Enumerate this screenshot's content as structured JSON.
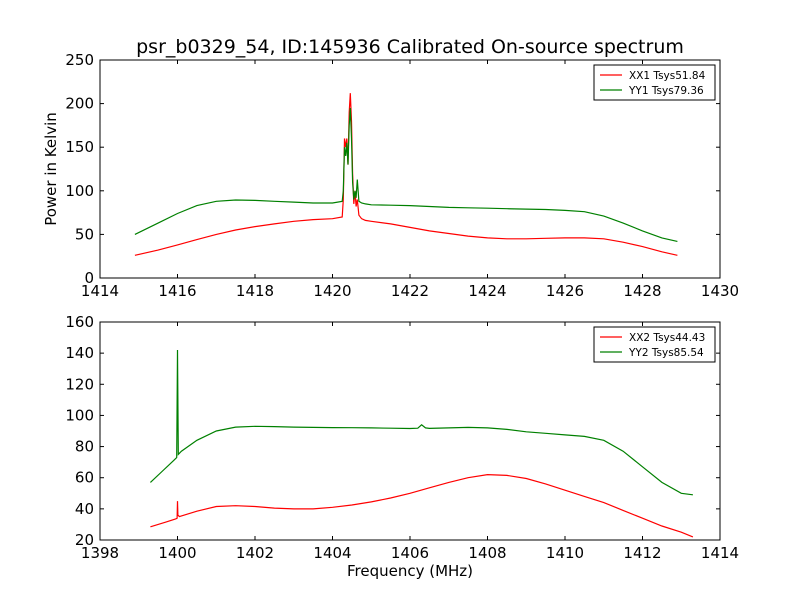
{
  "title": "psr_b0329_54, ID:145936 Calibrated On-source spectrum",
  "chart_data": [
    {
      "type": "line",
      "xlabel": "",
      "ylabel": "Power in Kelvin",
      "xlim": [
        1414,
        1430
      ],
      "ylim": [
        0,
        250
      ],
      "xticks": [
        1414,
        1416,
        1418,
        1420,
        1422,
        1424,
        1426,
        1428,
        1430
      ],
      "yticks": [
        0,
        50,
        100,
        150,
        200,
        250
      ],
      "legend_position": "top-right",
      "series": [
        {
          "name": "XX1 Tsys51.84",
          "color": "#ff0000",
          "x": [
            1414.9,
            1415.5,
            1416.0,
            1416.5,
            1417.0,
            1417.5,
            1418.0,
            1418.5,
            1419.0,
            1419.5,
            1420.0,
            1420.25,
            1420.28,
            1420.31,
            1420.34,
            1420.37,
            1420.4,
            1420.43,
            1420.46,
            1420.49,
            1420.52,
            1420.55,
            1420.58,
            1420.61,
            1420.64,
            1420.68,
            1420.75,
            1420.85,
            1421.0,
            1421.5,
            1422.0,
            1422.5,
            1423.0,
            1423.5,
            1424.0,
            1424.5,
            1425.0,
            1425.5,
            1426.0,
            1426.5,
            1427.0,
            1427.5,
            1428.0,
            1428.5,
            1428.9
          ],
          "y": [
            26,
            32,
            38,
            44,
            50,
            55,
            59,
            62,
            65,
            67,
            68,
            70,
            90,
            160,
            150,
            160,
            130,
            190,
            212,
            180,
            120,
            85,
            100,
            82,
            90,
            72,
            68,
            66,
            65,
            62,
            58,
            54,
            51,
            48,
            46,
            45,
            45,
            45.5,
            46,
            46,
            45,
            41,
            36,
            30,
            26
          ]
        },
        {
          "name": "YY1 Tsys79.36",
          "color": "#008000",
          "x": [
            1414.9,
            1415.5,
            1416.0,
            1416.5,
            1417.0,
            1417.5,
            1418.0,
            1418.5,
            1419.0,
            1419.5,
            1420.0,
            1420.25,
            1420.28,
            1420.31,
            1420.34,
            1420.37,
            1420.4,
            1420.43,
            1420.46,
            1420.49,
            1420.52,
            1420.55,
            1420.58,
            1420.61,
            1420.64,
            1420.68,
            1420.75,
            1420.85,
            1421.0,
            1421.5,
            1422.0,
            1422.5,
            1423.0,
            1423.5,
            1424.0,
            1424.5,
            1425.0,
            1425.5,
            1426.0,
            1426.5,
            1427.0,
            1427.5,
            1428.0,
            1428.5,
            1428.9
          ],
          "y": [
            50,
            63,
            74,
            83,
            88,
            89.5,
            89,
            88,
            87,
            86,
            86,
            88,
            100,
            150,
            140,
            155,
            130,
            175,
            195,
            160,
            110,
            90,
            100,
            92,
            113,
            88,
            86,
            85,
            84,
            83.5,
            83,
            82,
            81,
            80.5,
            80,
            79.5,
            79,
            78.5,
            77.5,
            76,
            71,
            63,
            54,
            46,
            42
          ]
        }
      ]
    },
    {
      "type": "line",
      "xlabel": "Frequency (MHz)",
      "ylabel": "",
      "xlim": [
        1398,
        1414
      ],
      "ylim": [
        20,
        160
      ],
      "xticks": [
        1398,
        1400,
        1402,
        1404,
        1406,
        1408,
        1410,
        1412,
        1414
      ],
      "yticks": [
        20,
        40,
        60,
        80,
        100,
        120,
        140,
        160
      ],
      "legend_position": "top-right",
      "series": [
        {
          "name": "XX2 Tsys44.43",
          "color": "#ff0000",
          "x": [
            1399.3,
            1399.7,
            1399.95,
            1399.99,
            1400.0,
            1400.01,
            1400.05,
            1400.5,
            1401.0,
            1401.5,
            1402.0,
            1402.5,
            1403.0,
            1403.5,
            1404.0,
            1404.5,
            1405.0,
            1405.5,
            1406.0,
            1406.5,
            1407.0,
            1407.5,
            1408.0,
            1408.5,
            1409.0,
            1409.5,
            1410.0,
            1410.5,
            1411.0,
            1411.5,
            1412.0,
            1412.5,
            1413.0,
            1413.3
          ],
          "y": [
            28.5,
            31.5,
            33.5,
            34,
            45,
            36,
            35,
            38.5,
            41.5,
            42,
            41.5,
            40.5,
            40,
            40,
            41,
            42.5,
            44.5,
            47,
            50,
            53.5,
            57,
            60,
            62,
            61.5,
            59.5,
            56,
            52,
            48,
            44,
            39,
            34,
            29,
            25,
            22
          ]
        },
        {
          "name": "YY2 Tsys85.54",
          "color": "#008000",
          "x": [
            1399.3,
            1399.6,
            1399.9,
            1399.98,
            1400.0,
            1400.02,
            1400.1,
            1400.5,
            1401.0,
            1401.5,
            1402.0,
            1402.5,
            1403.0,
            1403.5,
            1404.0,
            1404.5,
            1405.0,
            1405.5,
            1406.0,
            1406.2,
            1406.3,
            1406.4,
            1406.5,
            1407.0,
            1407.5,
            1408.0,
            1408.5,
            1409.0,
            1409.5,
            1410.0,
            1410.5,
            1411.0,
            1411.5,
            1412.0,
            1412.5,
            1413.0,
            1413.3
          ],
          "y": [
            57,
            64,
            71,
            73,
            142,
            75,
            77,
            84,
            90,
            92.5,
            93,
            92.8,
            92.5,
            92.3,
            92.2,
            92.1,
            92,
            91.8,
            91.6,
            91.8,
            94,
            92,
            91.7,
            92,
            92.3,
            92,
            91,
            89.5,
            88.5,
            87.5,
            86.5,
            84,
            77,
            67,
            57,
            50,
            49
          ]
        }
      ]
    }
  ]
}
